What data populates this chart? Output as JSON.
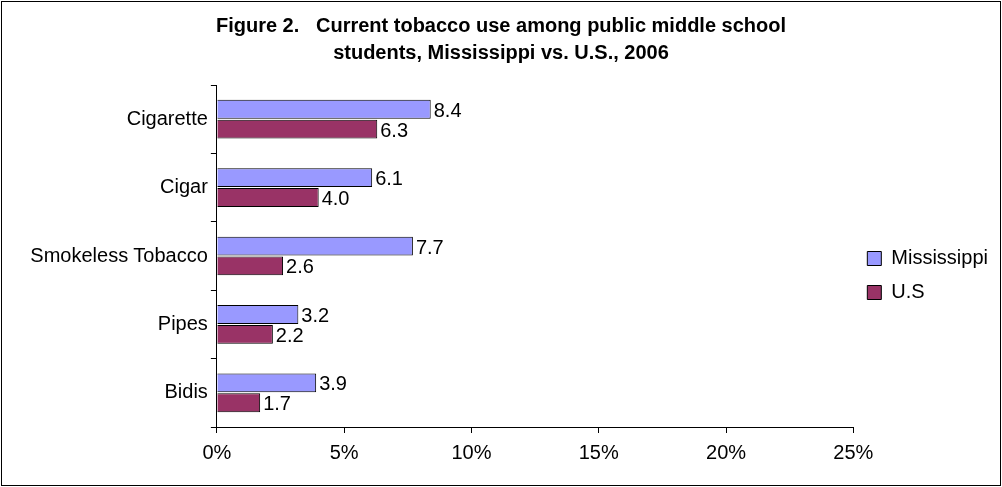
{
  "chart_data": {
    "type": "bar",
    "orientation": "horizontal",
    "title": "Figure 2.   Current tobacco use among public middle school students, Mississippi vs. U.S., 2006",
    "categories": [
      "Cigarette",
      "Cigar",
      "Smokeless Tobacco",
      "Pipes",
      "Bidis"
    ],
    "series": [
      {
        "name": "Mississippi",
        "color": "#9999ff",
        "values": [
          8.4,
          6.1,
          7.7,
          3.2,
          3.9
        ],
        "value_labels": [
          "8.4",
          "6.1",
          "7.7",
          "3.2",
          "3.9"
        ]
      },
      {
        "name": "U.S",
        "color": "#993366",
        "values": [
          6.3,
          4.0,
          2.6,
          2.2,
          1.7
        ],
        "value_labels": [
          "6.3",
          "4.0",
          "2.6",
          "2.2",
          "1.7"
        ]
      }
    ],
    "xlim": [
      0,
      25
    ],
    "xticks": [
      {
        "value": 0,
        "label": "0%"
      },
      {
        "value": 5,
        "label": "5%"
      },
      {
        "value": 10,
        "label": "10%"
      },
      {
        "value": 15,
        "label": "15%"
      },
      {
        "value": 20,
        "label": "20%"
      },
      {
        "value": 25,
        "label": "25%"
      }
    ],
    "legend": "right",
    "grid": false
  }
}
